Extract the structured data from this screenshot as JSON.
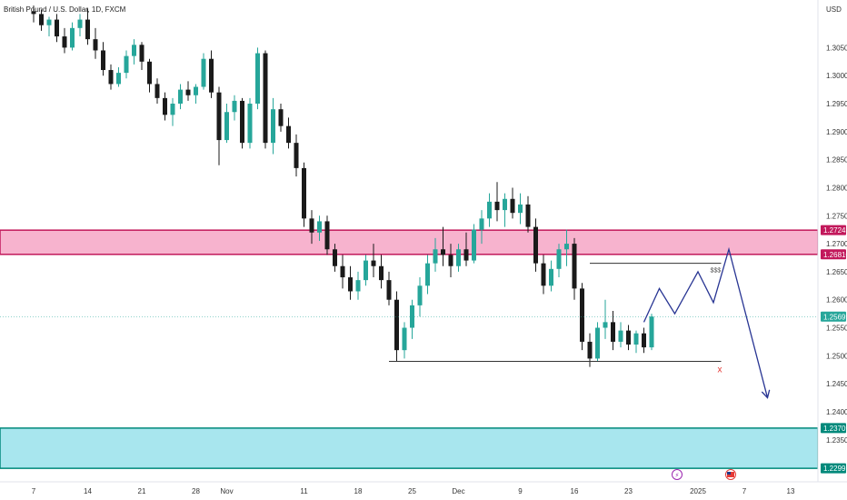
{
  "symbol_title": "British Pound / U.S. Dollar, 1D, FXCM",
  "currency": "USD",
  "price_axis": {
    "min": 1.2275,
    "max": 1.3135,
    "ticks": [
      "1.30500",
      "1.30000",
      "1.29500",
      "1.29000",
      "1.28500",
      "1.28000",
      "1.27500",
      "1.27000",
      "1.26500",
      "1.26000",
      "1.25500",
      "1.25000",
      "1.24500",
      "1.24000",
      "1.23500"
    ]
  },
  "date_axis": {
    "labels": [
      {
        "text": "7",
        "day": 0
      },
      {
        "text": "14",
        "day": 7
      },
      {
        "text": "21",
        "day": 14
      },
      {
        "text": "28",
        "day": 21
      },
      {
        "text": "Nov",
        "day": 25
      },
      {
        "text": "11",
        "day": 35
      },
      {
        "text": "18",
        "day": 42
      },
      {
        "text": "25",
        "day": 49
      },
      {
        "text": "Dec",
        "day": 55
      },
      {
        "text": "9",
        "day": 63
      },
      {
        "text": "16",
        "day": 70
      },
      {
        "text": "23",
        "day": 77
      },
      {
        "text": "2025",
        "day": 86
      },
      {
        "text": "7",
        "day": 92
      },
      {
        "text": "13",
        "day": 98
      }
    ]
  },
  "price_labels": {
    "zone_top": "1.27242",
    "zone_bottom": "1.26810",
    "current": "1.25699",
    "demand_top": "1.23709",
    "demand_bottom": "1.22991"
  },
  "annotations": {
    "liquidity_label": "$$$",
    "target_mark": "x"
  },
  "colors": {
    "bull": "#26a69a",
    "bear": "#1a1a1a",
    "supply_zone": "#f7b3ce",
    "supply_border": "#c2185b",
    "demand_zone": "#a8e6ee",
    "demand_border": "#00897b",
    "projection": "#283593",
    "current_price_badge": "#26a69a"
  },
  "chart_data": {
    "type": "candlestick",
    "series_name": "British Pound / U.S. Dollar",
    "day_start_label": "7",
    "ohlc": [
      [
        1.3115,
        1.3125,
        1.3095,
        1.311
      ],
      [
        1.311,
        1.3118,
        1.308,
        1.309
      ],
      [
        1.309,
        1.3105,
        1.307,
        1.31
      ],
      [
        1.31,
        1.311,
        1.306,
        1.307
      ],
      [
        1.307,
        1.3085,
        1.304,
        1.305
      ],
      [
        1.305,
        1.3095,
        1.3045,
        1.3085
      ],
      [
        1.3085,
        1.311,
        1.307,
        1.31
      ],
      [
        1.31,
        1.312,
        1.3055,
        1.3065
      ],
      [
        1.3065,
        1.3085,
        1.303,
        1.3045
      ],
      [
        1.3045,
        1.306,
        1.3,
        1.301
      ],
      [
        1.301,
        1.302,
        1.2975,
        1.2985
      ],
      [
        1.2985,
        1.3015,
        1.298,
        1.3005
      ],
      [
        1.3005,
        1.3045,
        1.2995,
        1.3035
      ],
      [
        1.3035,
        1.3065,
        1.302,
        1.3055
      ],
      [
        1.3055,
        1.306,
        1.301,
        1.3025
      ],
      [
        1.3025,
        1.303,
        1.297,
        1.2985
      ],
      [
        1.2985,
        1.2995,
        1.295,
        1.296
      ],
      [
        1.296,
        1.297,
        1.292,
        1.293
      ],
      [
        1.293,
        1.296,
        1.291,
        1.295
      ],
      [
        1.295,
        1.2985,
        1.294,
        1.2975
      ],
      [
        1.2975,
        1.299,
        1.2955,
        1.2965
      ],
      [
        1.2965,
        1.2985,
        1.295,
        1.298
      ],
      [
        1.298,
        1.304,
        1.2975,
        1.303
      ],
      [
        1.303,
        1.3045,
        1.296,
        1.297
      ],
      [
        1.297,
        1.298,
        1.284,
        1.2885
      ],
      [
        1.2885,
        1.295,
        1.288,
        1.2935
      ],
      [
        1.2935,
        1.2965,
        1.292,
        1.2955
      ],
      [
        1.2955,
        1.296,
        1.287,
        1.288
      ],
      [
        1.288,
        1.296,
        1.287,
        1.295
      ],
      [
        1.295,
        1.305,
        1.294,
        1.304
      ],
      [
        1.304,
        1.3045,
        1.287,
        1.288
      ],
      [
        1.288,
        1.296,
        1.286,
        1.294
      ],
      [
        1.294,
        1.295,
        1.29,
        1.291
      ],
      [
        1.291,
        1.2925,
        1.287,
        1.288
      ],
      [
        1.288,
        1.2895,
        1.282,
        1.2835
      ],
      [
        1.2835,
        1.2845,
        1.273,
        1.2745
      ],
      [
        1.2745,
        1.276,
        1.27,
        1.272
      ],
      [
        1.272,
        1.275,
        1.2705,
        1.274
      ],
      [
        1.274,
        1.275,
        1.268,
        1.269
      ],
      [
        1.269,
        1.27,
        1.265,
        1.266
      ],
      [
        1.266,
        1.268,
        1.262,
        1.264
      ],
      [
        1.264,
        1.266,
        1.26,
        1.2615
      ],
      [
        1.2615,
        1.265,
        1.26,
        1.2635
      ],
      [
        1.2635,
        1.268,
        1.2625,
        1.267
      ],
      [
        1.267,
        1.27,
        1.264,
        1.266
      ],
      [
        1.266,
        1.268,
        1.262,
        1.2635
      ],
      [
        1.2635,
        1.265,
        1.259,
        1.26
      ],
      [
        1.26,
        1.2615,
        1.249,
        1.251
      ],
      [
        1.251,
        1.256,
        1.2495,
        1.255
      ],
      [
        1.255,
        1.26,
        1.253,
        1.259
      ],
      [
        1.259,
        1.264,
        1.257,
        1.2625
      ],
      [
        1.2625,
        1.268,
        1.261,
        1.2665
      ],
      [
        1.2665,
        1.271,
        1.265,
        1.269
      ],
      [
        1.269,
        1.273,
        1.266,
        1.268
      ],
      [
        1.268,
        1.27,
        1.264,
        1.266
      ],
      [
        1.266,
        1.27,
        1.265,
        1.269
      ],
      [
        1.269,
        1.272,
        1.266,
        1.267
      ],
      [
        1.267,
        1.2735,
        1.2665,
        1.2725
      ],
      [
        1.2725,
        1.276,
        1.27,
        1.2745
      ],
      [
        1.2745,
        1.279,
        1.273,
        1.2775
      ],
      [
        1.2775,
        1.281,
        1.274,
        1.276
      ],
      [
        1.276,
        1.279,
        1.273,
        1.278
      ],
      [
        1.278,
        1.28,
        1.2745,
        1.2755
      ],
      [
        1.2755,
        1.279,
        1.2735,
        1.277
      ],
      [
        1.277,
        1.2785,
        1.272,
        1.273
      ],
      [
        1.273,
        1.2745,
        1.265,
        1.2665
      ],
      [
        1.2665,
        1.268,
        1.261,
        1.2625
      ],
      [
        1.2625,
        1.267,
        1.2615,
        1.2655
      ],
      [
        1.2655,
        1.27,
        1.264,
        1.269
      ],
      [
        1.269,
        1.2725,
        1.266,
        1.27
      ],
      [
        1.27,
        1.271,
        1.26,
        1.262
      ],
      [
        1.262,
        1.263,
        1.251,
        1.2525
      ],
      [
        1.2525,
        1.254,
        1.248,
        1.2495
      ],
      [
        1.2495,
        1.256,
        1.249,
        1.255
      ],
      [
        1.255,
        1.26,
        1.253,
        1.256
      ],
      [
        1.256,
        1.258,
        1.251,
        1.2525
      ],
      [
        1.2525,
        1.256,
        1.2515,
        1.2545
      ],
      [
        1.2545,
        1.2555,
        1.251,
        1.252
      ],
      [
        1.252,
        1.2545,
        1.2505,
        1.254
      ],
      [
        1.254,
        1.255,
        1.2505,
        1.2515
      ],
      [
        1.2515,
        1.2575,
        1.251,
        1.257
      ]
    ],
    "projection_path": [
      {
        "day": 79,
        "price": 1.256
      },
      {
        "day": 81,
        "price": 1.262
      },
      {
        "day": 83,
        "price": 1.2575
      },
      {
        "day": 86,
        "price": 1.265
      },
      {
        "day": 88,
        "price": 1.2595
      },
      {
        "day": 90,
        "price": 1.269
      },
      {
        "day": 95,
        "price": 1.2425
      }
    ],
    "zones": [
      {
        "name": "supply",
        "top": 1.27242,
        "bottom": 1.2681
      },
      {
        "name": "demand",
        "top": 1.23709,
        "bottom": 1.22991
      }
    ],
    "lines": [
      {
        "name": "equal-lows",
        "price": 1.249,
        "from_day": 46,
        "to_day": 89
      },
      {
        "name": "equal-highs",
        "price": 1.2665,
        "from_day": 72,
        "to_day": 89
      }
    ],
    "current_price": 1.25699
  }
}
